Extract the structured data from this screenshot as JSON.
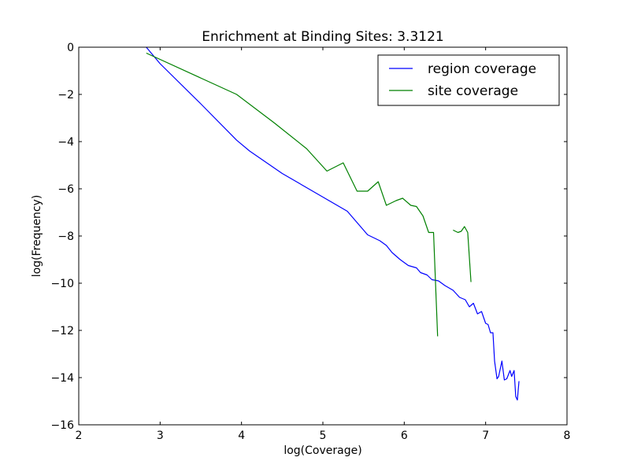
{
  "chart_data": {
    "type": "line",
    "title": "Enrichment at Binding Sites: 3.3121",
    "xlabel": "log(Coverage)",
    "ylabel": "log(Frequency)",
    "xlim": [
      2,
      8
    ],
    "ylim": [
      -16,
      0
    ],
    "xticks": [
      2,
      3,
      4,
      5,
      6,
      7,
      8
    ],
    "yticks": [
      0,
      -2,
      -4,
      -6,
      -8,
      -10,
      -12,
      -14,
      -16
    ],
    "xtick_labels": [
      "2",
      "3",
      "4",
      "5",
      "6",
      "7",
      "8"
    ],
    "ytick_labels": [
      "0",
      "−2",
      "−4",
      "−6",
      "−8",
      "−10",
      "−12",
      "−14",
      "−16"
    ],
    "grid": false,
    "legend_position": "top-right",
    "series": [
      {
        "name": "region coverage",
        "color": "#0000ff",
        "segments": [
          [
            [
              2.83,
              0.0
            ],
            [
              3.0,
              -0.7
            ],
            [
              3.5,
              -2.4
            ],
            [
              3.94,
              -3.94
            ],
            [
              4.1,
              -4.4
            ],
            [
              4.5,
              -5.35
            ],
            [
              5.0,
              -6.35
            ],
            [
              5.3,
              -6.95
            ],
            [
              5.55,
              -7.95
            ],
            [
              5.7,
              -8.2
            ],
            [
              5.78,
              -8.4
            ],
            [
              5.85,
              -8.7
            ],
            [
              5.95,
              -9.0
            ],
            [
              6.05,
              -9.25
            ],
            [
              6.15,
              -9.35
            ],
            [
              6.2,
              -9.55
            ],
            [
              6.28,
              -9.65
            ],
            [
              6.34,
              -9.85
            ],
            [
              6.42,
              -9.9
            ],
            [
              6.5,
              -10.1
            ],
            [
              6.6,
              -10.3
            ],
            [
              6.68,
              -10.6
            ],
            [
              6.75,
              -10.7
            ],
            [
              6.8,
              -11.0
            ],
            [
              6.85,
              -10.85
            ],
            [
              6.9,
              -11.3
            ],
            [
              6.95,
              -11.2
            ],
            [
              7.0,
              -11.7
            ],
            [
              7.03,
              -11.75
            ],
            [
              7.06,
              -12.1
            ],
            [
              7.09,
              -12.1
            ],
            [
              7.11,
              -13.3
            ],
            [
              7.14,
              -14.05
            ],
            [
              7.16,
              -13.95
            ],
            [
              7.2,
              -13.3
            ],
            [
              7.23,
              -14.1
            ],
            [
              7.26,
              -14.05
            ],
            [
              7.3,
              -13.7
            ],
            [
              7.32,
              -13.95
            ],
            [
              7.35,
              -13.7
            ],
            [
              7.37,
              -14.8
            ],
            [
              7.39,
              -14.95
            ],
            [
              7.41,
              -14.15
            ]
          ]
        ]
      },
      {
        "name": "site coverage",
        "color": "#008000",
        "segments": [
          [
            [
              2.83,
              -0.25
            ],
            [
              3.94,
              -2.0
            ],
            [
              4.4,
              -3.2
            ],
            [
              4.8,
              -4.3
            ],
            [
              5.05,
              -5.25
            ],
            [
              5.25,
              -4.9
            ],
            [
              5.42,
              -6.1
            ],
            [
              5.55,
              -6.1
            ],
            [
              5.68,
              -5.7
            ],
            [
              5.78,
              -6.7
            ],
            [
              5.9,
              -6.5
            ],
            [
              5.98,
              -6.4
            ],
            [
              6.08,
              -6.7
            ],
            [
              6.15,
              -6.75
            ],
            [
              6.23,
              -7.15
            ],
            [
              6.3,
              -7.85
            ],
            [
              6.36,
              -7.85
            ],
            [
              6.41,
              -12.25
            ]
          ],
          [
            [
              6.6,
              -7.75
            ],
            [
              6.66,
              -7.85
            ],
            [
              6.7,
              -7.8
            ],
            [
              6.74,
              -7.6
            ],
            [
              6.78,
              -7.85
            ],
            [
              6.82,
              -9.95
            ]
          ]
        ]
      }
    ]
  }
}
